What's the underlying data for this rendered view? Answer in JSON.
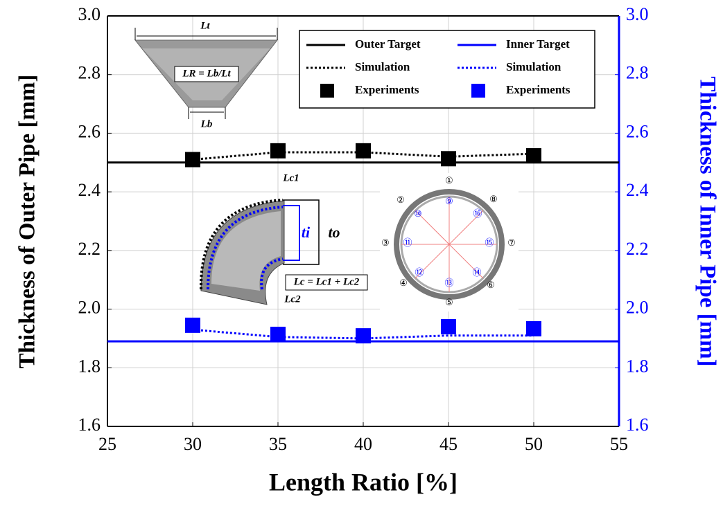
{
  "chart_data": {
    "type": "line",
    "x_label": "Length Ratio [%]",
    "y_label": "Thickness of Outer Pipe [mm]",
    "y2_label": "Thickness of Inner Pipe [mm]",
    "xlim": [
      25,
      55
    ],
    "xticks": [
      25,
      30,
      35,
      40,
      45,
      50,
      55
    ],
    "ylim": [
      1.6,
      3.0
    ],
    "yticks": [
      1.6,
      1.8,
      {
        "value": 2,
        "label": "2.0"
      },
      2.2,
      2.4,
      2.6,
      2.8,
      {
        "value": 3,
        "label": "3.0"
      }
    ],
    "y2lim": [
      1.6,
      3.0
    ],
    "y2ticks": [
      1.6,
      1.8,
      {
        "value": 2,
        "label": "2.0"
      },
      2.2,
      2.4,
      2.6,
      2.8,
      {
        "value": 3,
        "label": "3.0"
      }
    ],
    "grid": true,
    "legend": "upper right",
    "series": [
      {
        "name": "Outer Target",
        "color": "#000000",
        "style": "solid",
        "x": [
          25,
          55
        ],
        "values": [
          2.5,
          2.5
        ]
      },
      {
        "name": "Simulation",
        "color": "#000000",
        "style": "dotted",
        "x": [
          30,
          35,
          40,
          45,
          50
        ],
        "values": [
          2.51,
          2.535,
          2.535,
          2.52,
          2.53
        ]
      },
      {
        "name": "Experiments",
        "color": "#000000",
        "style": "marker",
        "x": [
          30,
          35,
          40,
          45,
          50
        ],
        "values": [
          2.51,
          2.54,
          2.54,
          2.513,
          2.523
        ]
      },
      {
        "name": "Inner Target",
        "color": "#0000ff",
        "style": "solid",
        "axis": "y2",
        "x": [
          25,
          55
        ],
        "values": [
          1.89,
          1.89
        ]
      },
      {
        "name": "Simulation",
        "color": "#0000ff",
        "style": "dotted",
        "axis": "y2",
        "x": [
          30,
          35,
          40,
          45,
          50
        ],
        "values": [
          1.93,
          1.905,
          1.9,
          1.91,
          1.91
        ]
      },
      {
        "name": "Experiments",
        "color": "#0000ff",
        "style": "marker",
        "axis": "y2",
        "x": [
          30,
          35,
          40,
          45,
          50
        ],
        "values": [
          1.945,
          1.914,
          1.909,
          1.94,
          1.933
        ]
      }
    ],
    "annotations": [
      "Lt",
      "LR = Lb/Lt",
      "Lb",
      "Lc1",
      "ti",
      "to",
      "Lc = Lc1 + Lc2",
      "Lc2",
      "①",
      "②",
      "③",
      "④",
      "⑤",
      "⑥",
      "⑦",
      "⑧",
      "⑨",
      "⑩",
      "⑪",
      "⑫",
      "⑬",
      "⑭",
      "⑮",
      "⑯"
    ]
  }
}
